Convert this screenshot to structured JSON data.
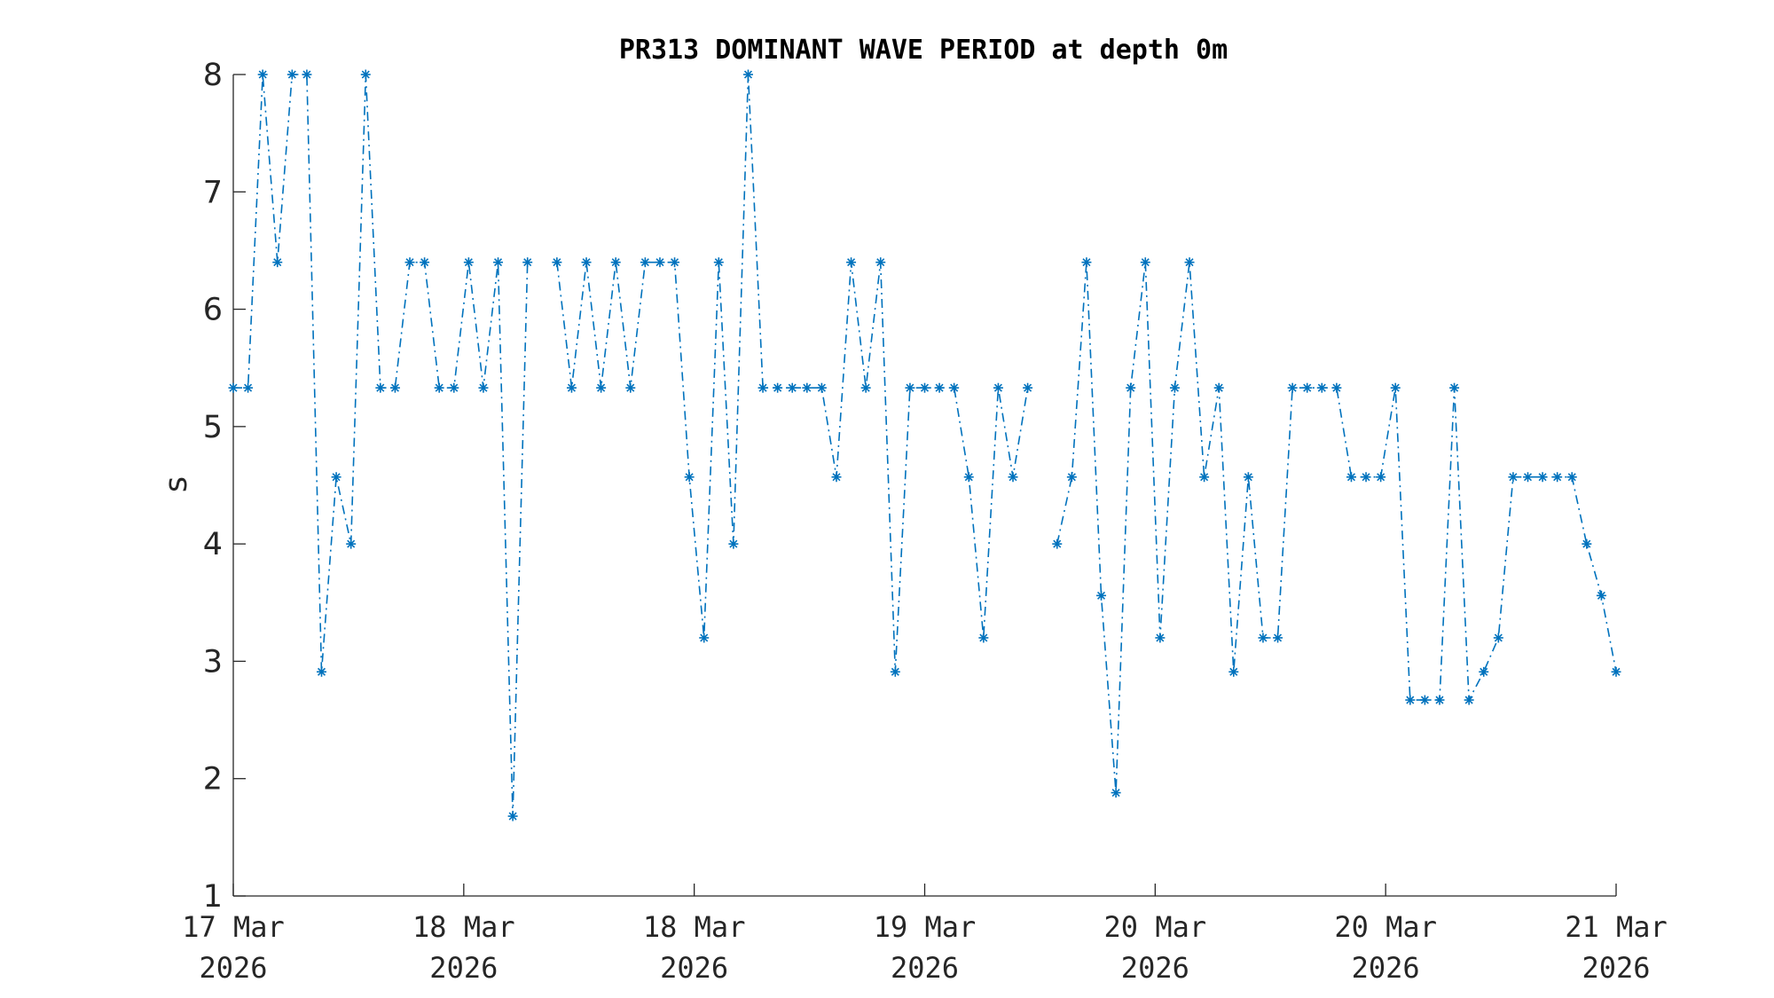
{
  "chart_data": {
    "type": "line",
    "title": "PR313 DOMINANT WAVE PERIOD at depth 0m",
    "xlabel": "",
    "ylabel": "s",
    "ylim": [
      1,
      8
    ],
    "yticks": [
      1,
      2,
      3,
      4,
      5,
      6,
      7,
      8
    ],
    "xlim": [
      "2026-03-17 00:00",
      "2026-03-21 00:00"
    ],
    "xticks": [
      {
        "line1": "17 Mar",
        "line2": "2026"
      },
      {
        "line1": "18 Mar",
        "line2": "2026"
      },
      {
        "line1": "18 Mar",
        "line2": "2026"
      },
      {
        "line1": "19 Mar",
        "line2": "2026"
      },
      {
        "line1": "20 Mar",
        "line2": "2026"
      },
      {
        "line1": "20 Mar",
        "line2": "2026"
      },
      {
        "line1": "21 Mar",
        "line2": "2026"
      }
    ],
    "grid": false,
    "color": "#0072BD",
    "marker": "asterisk",
    "line_style": "dash-dot",
    "time_step_hours": 1,
    "series": [
      {
        "values": [
          5.33,
          5.33,
          8,
          6.4,
          8,
          8,
          2.91,
          4.57,
          4,
          8,
          5.33,
          5.33,
          6.4,
          6.4,
          5.33,
          5.33,
          6.4,
          5.33,
          6.4,
          1.68,
          6.4,
          null,
          6.4,
          5.33,
          6.4,
          5.33,
          6.4,
          5.33,
          6.4,
          6.4,
          6.4,
          4.57,
          3.2,
          6.4,
          4,
          8,
          5.33,
          5.33,
          5.33,
          5.33,
          5.33,
          4.57,
          6.4,
          5.33,
          6.4,
          2.91,
          5.33,
          5.33,
          5.33,
          5.33,
          4.57,
          3.2,
          5.33,
          4.57,
          5.33,
          null,
          4,
          4.57,
          6.4,
          3.56,
          1.88,
          5.33,
          6.4,
          3.2,
          5.33,
          6.4,
          4.57,
          5.33,
          2.91,
          4.57,
          3.2,
          3.2,
          5.33,
          5.33,
          5.33,
          5.33,
          4.57,
          4.57,
          4.57,
          5.33,
          2.67,
          2.67,
          2.67,
          5.33,
          2.67,
          2.91,
          3.2,
          4.57,
          4.57,
          4.57,
          4.57,
          4.57,
          4,
          3.56,
          2.91
        ]
      }
    ]
  }
}
